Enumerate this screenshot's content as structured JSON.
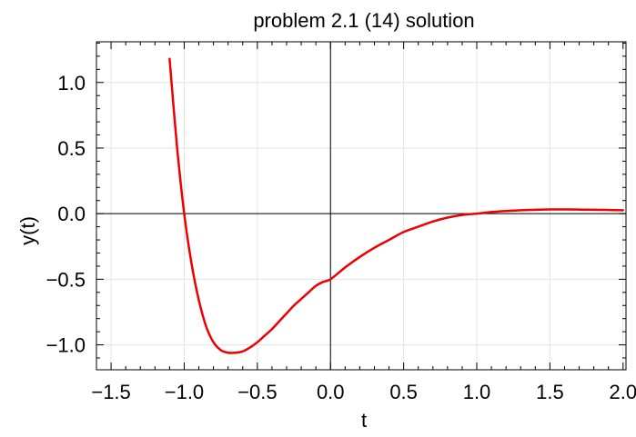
{
  "chart_data": {
    "type": "line",
    "title": "problem 2.1 (14) solution",
    "xlabel": "t",
    "ylabel": "y(t)",
    "xlim": [
      -1.6,
      2.02
    ],
    "ylim": [
      -1.19,
      1.31
    ],
    "x_ticks": [
      -1.5,
      -1.0,
      -0.5,
      0.0,
      0.5,
      1.0,
      1.5,
      2.0
    ],
    "x_tick_labels": [
      "−1.5",
      "−1.0",
      "−0.5",
      "0.0",
      "0.5",
      "1.0",
      "1.5",
      "2.0"
    ],
    "y_ticks": [
      -1.0,
      -0.5,
      0.0,
      0.5,
      1.0
    ],
    "y_tick_labels": [
      "−1.0",
      "−0.5",
      "0.0",
      "0.5",
      "1.0"
    ],
    "grid": true,
    "line_color": "#ee0000",
    "series": [
      {
        "x": [
          -1.1,
          -1.05,
          -1.0,
          -0.95,
          -0.9,
          -0.85,
          -0.8,
          -0.75,
          -0.7,
          -0.65,
          -0.6,
          -0.55,
          -0.5,
          -0.45,
          -0.4,
          -0.35,
          -0.3,
          -0.25,
          -0.2,
          -0.15,
          -0.1,
          -0.05,
          0.0,
          0.1,
          0.2,
          0.3,
          0.4,
          0.5,
          0.6,
          0.7,
          0.8,
          0.9,
          1.0,
          1.1,
          1.2,
          1.3,
          1.4,
          1.5,
          1.6,
          1.7,
          1.8,
          1.9,
          2.0
        ],
        "y": [
          1.18,
          0.52,
          0.0,
          -0.38,
          -0.66,
          -0.86,
          -0.98,
          -1.04,
          -1.06,
          -1.06,
          -1.05,
          -1.02,
          -0.98,
          -0.93,
          -0.88,
          -0.82,
          -0.76,
          -0.7,
          -0.65,
          -0.6,
          -0.55,
          -0.52,
          -0.5,
          -0.41,
          -0.33,
          -0.26,
          -0.2,
          -0.14,
          -0.1,
          -0.06,
          -0.03,
          -0.01,
          0.0,
          0.012,
          0.02,
          0.026,
          0.03,
          0.032,
          0.032,
          0.031,
          0.03,
          0.028,
          0.026
        ]
      }
    ]
  }
}
